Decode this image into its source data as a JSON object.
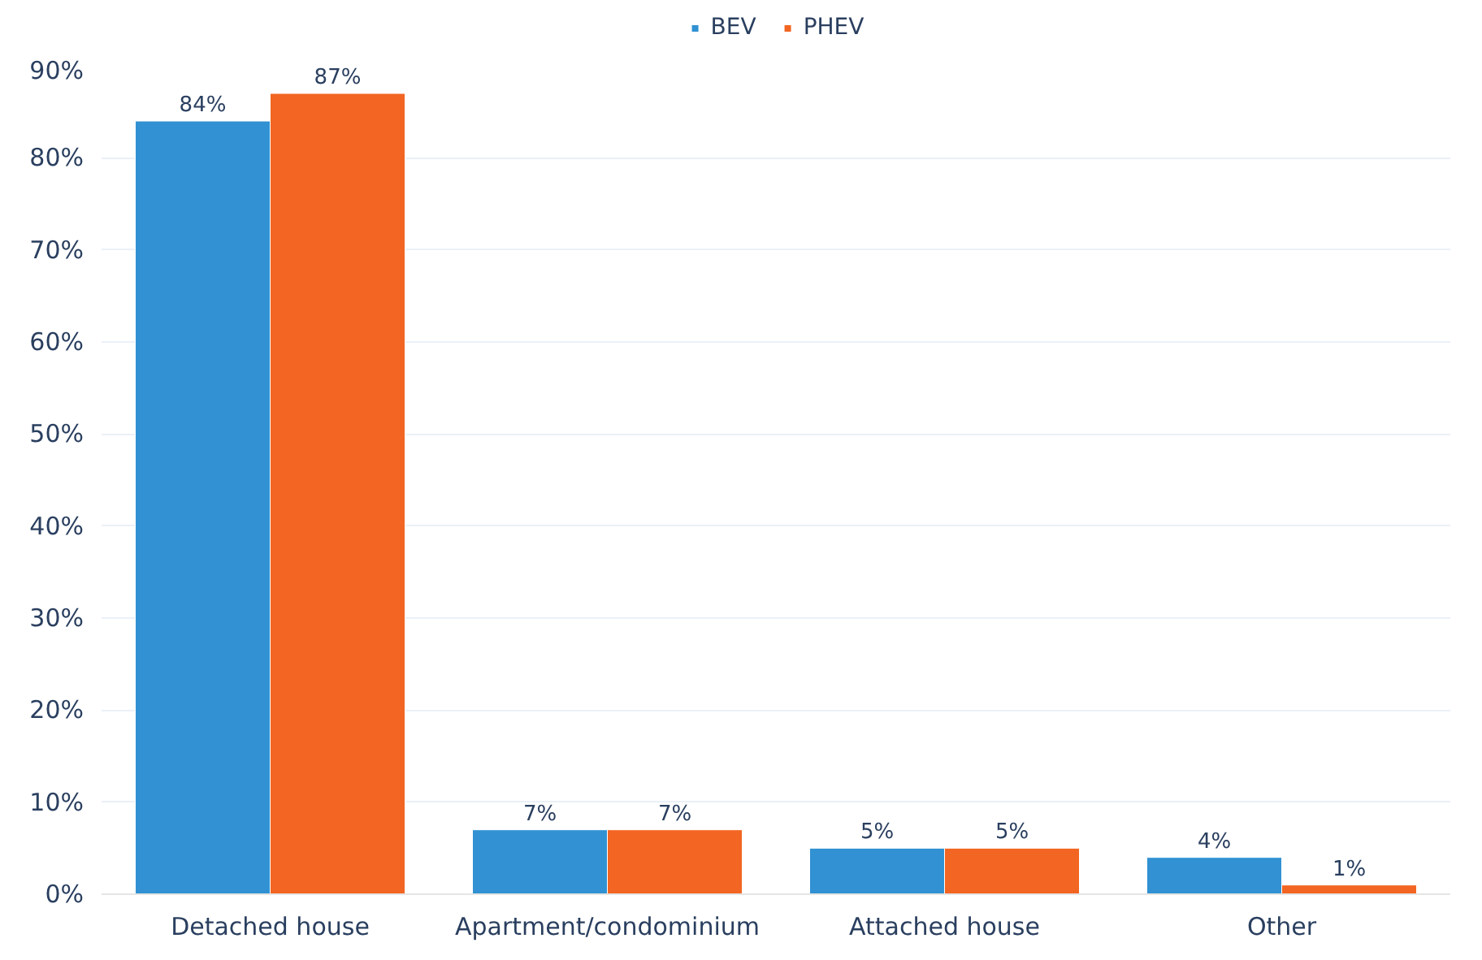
{
  "chart_data": {
    "type": "bar",
    "categories": [
      "Detached house",
      "Apartment/condominium",
      "Attached house",
      "Other"
    ],
    "series": [
      {
        "name": "BEV",
        "color": "#3191d2",
        "values": [
          84,
          7,
          5,
          4
        ],
        "value_labels": [
          "84%",
          "7%",
          "5%",
          "4%"
        ]
      },
      {
        "name": "PHEV",
        "color": "#f26522",
        "values": [
          87,
          7,
          5,
          1
        ],
        "value_labels": [
          "87%",
          "7%",
          "5%",
          "1%"
        ]
      }
    ],
    "ylim": [
      0,
      90
    ],
    "yticks": [
      {
        "value": 0,
        "label": "0%"
      },
      {
        "value": 10,
        "label": "10%"
      },
      {
        "value": 20,
        "label": "20%"
      },
      {
        "value": 30,
        "label": "30%"
      },
      {
        "value": 40,
        "label": "40%"
      },
      {
        "value": 50,
        "label": "50%"
      },
      {
        "value": 60,
        "label": "60%"
      },
      {
        "value": 70,
        "label": "70%"
      },
      {
        "value": 80,
        "label": "80%"
      },
      {
        "value": 90,
        "label": "90%"
      }
    ],
    "grid": "y",
    "legend": "top"
  }
}
